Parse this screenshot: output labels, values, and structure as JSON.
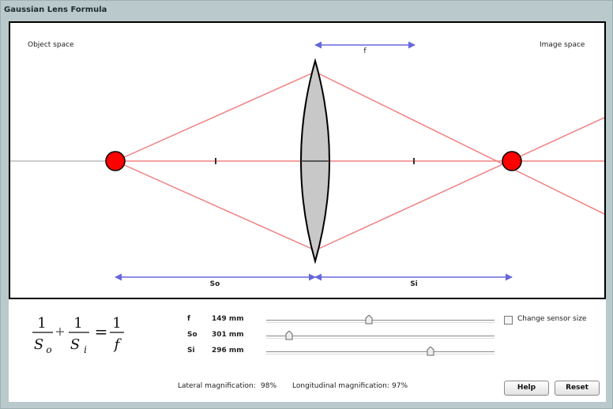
{
  "window": {
    "title": "Gaussian Lens Formula"
  },
  "stage": {
    "object_space_label": "Object space",
    "image_space_label": "Image space",
    "f_arrow_label": "f",
    "so_arrow_label": "So",
    "si_arrow_label": "Si"
  },
  "formula": {
    "one": "1",
    "so_sym": "S",
    "so_sub": "o",
    "si_sym": "S",
    "si_sub": "i",
    "f_sym": "f",
    "plus": "+",
    "equals": "="
  },
  "params": [
    {
      "name": "f",
      "value": "149 mm",
      "fraction": 0.45
    },
    {
      "name": "So",
      "value": "301 mm",
      "fraction": 0.1
    },
    {
      "name": "Si",
      "value": "296 mm",
      "fraction": 0.72
    }
  ],
  "sensor": {
    "checkbox_label": "Change sensor size",
    "checked": false
  },
  "magnification": {
    "lateral_label": "Lateral magnification:",
    "lateral_value": "98%",
    "longitudinal_label": "Longitudinal magnification:",
    "longitudinal_value": "97%"
  },
  "buttons": {
    "help": "Help",
    "reset": "Reset"
  },
  "colors": {
    "ray": "#f08080",
    "point": "#ff0000",
    "arrow": "#6666dd",
    "lens_fill": "#c8c8c8"
  }
}
